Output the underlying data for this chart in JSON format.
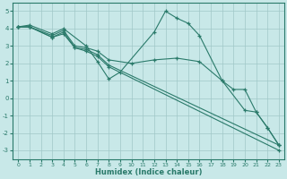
{
  "xlabel": "Humidex (Indice chaleur)",
  "xlim": [
    -0.5,
    23.5
  ],
  "ylim": [
    -3.5,
    5.5
  ],
  "yticks": [
    -3,
    -2,
    -1,
    0,
    1,
    2,
    3,
    4,
    5
  ],
  "xticks": [
    0,
    1,
    2,
    3,
    4,
    5,
    6,
    7,
    8,
    9,
    10,
    11,
    12,
    13,
    14,
    15,
    16,
    17,
    18,
    19,
    20,
    21,
    22,
    23
  ],
  "bg_color": "#c8e8e8",
  "grid_color": "#a0c8c8",
  "line_color": "#2a7a6a",
  "lines": [
    {
      "x": [
        0,
        1,
        3,
        4,
        6,
        7,
        8,
        9,
        12,
        13,
        14,
        15,
        16,
        18,
        20,
        21,
        22,
        23
      ],
      "y": [
        4.1,
        4.2,
        3.7,
        4.0,
        3.0,
        2.1,
        1.1,
        1.5,
        3.8,
        5.0,
        4.6,
        4.3,
        3.6,
        1.0,
        -0.7,
        -0.8,
        -1.7,
        -2.7
      ]
    },
    {
      "x": [
        0,
        1,
        3,
        4,
        5,
        6,
        7,
        8,
        10,
        12,
        14,
        16,
        18,
        19,
        20,
        21,
        22,
        23
      ],
      "y": [
        4.1,
        4.1,
        3.6,
        3.9,
        3.0,
        2.9,
        2.7,
        2.2,
        2.0,
        2.2,
        2.3,
        2.1,
        1.0,
        0.5,
        0.5,
        -0.8,
        -1.7,
        -2.7
      ]
    },
    {
      "x": [
        0,
        1,
        3,
        4,
        5,
        6,
        7,
        8,
        23
      ],
      "y": [
        4.1,
        4.1,
        3.5,
        3.8,
        2.9,
        2.8,
        2.5,
        1.9,
        -2.7
      ]
    },
    {
      "x": [
        0,
        1,
        3,
        4,
        5,
        6,
        7,
        8,
        23
      ],
      "y": [
        4.1,
        4.1,
        3.5,
        3.7,
        2.9,
        2.7,
        2.4,
        1.8,
        -3.0
      ]
    }
  ]
}
